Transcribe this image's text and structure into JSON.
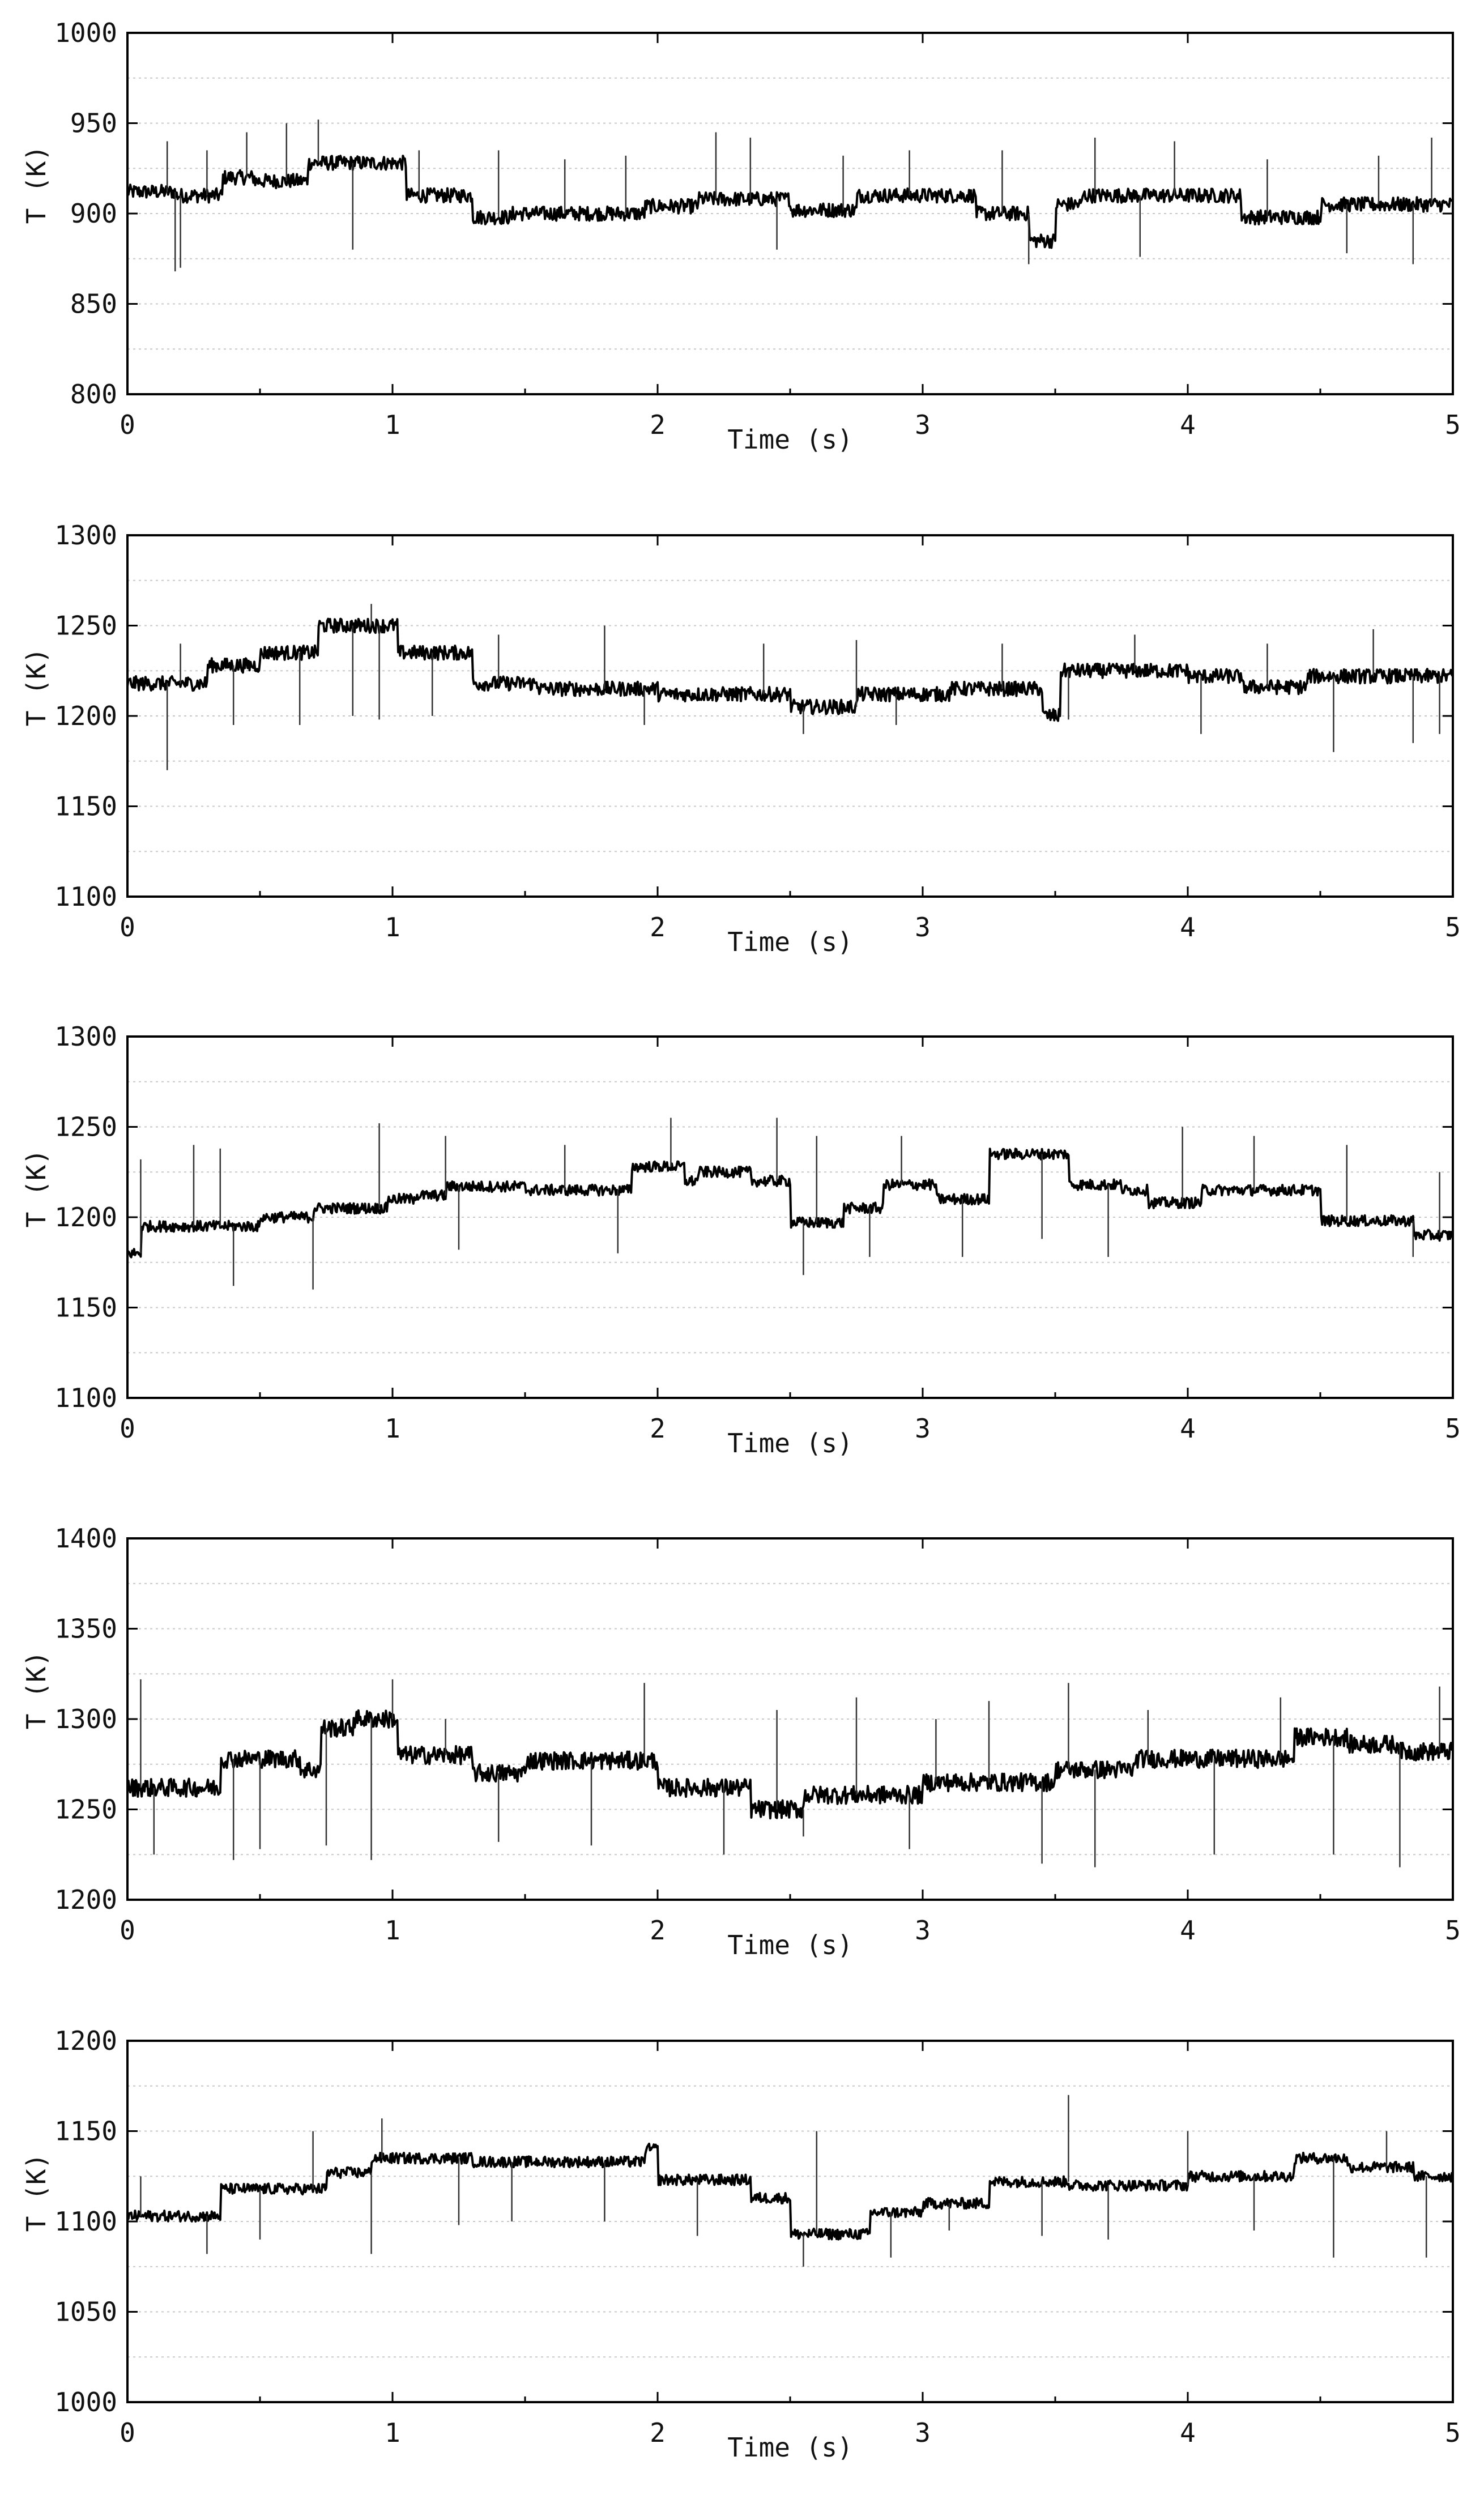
{
  "chart_data": [
    {
      "type": "line",
      "xlabel": "Time (s)",
      "ylabel": "T (K)",
      "xlim": [
        0,
        5
      ],
      "ylim": [
        800,
        1000
      ],
      "xticks": [
        "0",
        "1",
        "2",
        "3",
        "4",
        "5"
      ],
      "yticks": [
        "800",
        "850",
        "900",
        "950",
        "1000"
      ],
      "grid": "horizontal dotted",
      "series": [
        {
          "color": "#000000",
          "noise": 4,
          "segments": [
            [
              0,
              0.18,
              912
            ],
            [
              0.18,
              0.36,
              910
            ],
            [
              0.36,
              0.48,
              920
            ],
            [
              0.48,
              0.68,
              918
            ],
            [
              0.68,
              1.05,
              928
            ],
            [
              1.05,
              1.3,
              910
            ],
            [
              1.3,
              1.45,
              898
            ],
            [
              1.45,
              1.95,
              900
            ],
            [
              1.95,
              2.15,
              904
            ],
            [
              2.15,
              2.5,
              908
            ],
            [
              2.5,
              2.75,
              902
            ],
            [
              2.75,
              3.2,
              910
            ],
            [
              3.2,
              3.4,
              900
            ],
            [
              3.4,
              3.5,
              885
            ],
            [
              3.5,
              3.6,
              905
            ],
            [
              3.6,
              4.2,
              910
            ],
            [
              4.2,
              4.5,
              898
            ],
            [
              4.5,
              5,
              905
            ]
          ],
          "spikes": [
            [
              0.15,
              940
            ],
            [
              0.18,
              868
            ],
            [
              0.2,
              870
            ],
            [
              0.3,
              935
            ],
            [
              0.45,
              945
            ],
            [
              0.6,
              950
            ],
            [
              0.72,
              952
            ],
            [
              0.85,
              880
            ],
            [
              1.1,
              935
            ],
            [
              1.4,
              935
            ],
            [
              1.65,
              930
            ],
            [
              1.88,
              932
            ],
            [
              2.22,
              945
            ],
            [
              2.35,
              942
            ],
            [
              2.45,
              880
            ],
            [
              2.7,
              932
            ],
            [
              2.95,
              935
            ],
            [
              3.3,
              935
            ],
            [
              3.4,
              872
            ],
            [
              3.65,
              942
            ],
            [
              3.82,
              876
            ],
            [
              3.95,
              940
            ],
            [
              4.3,
              930
            ],
            [
              4.6,
              878
            ],
            [
              4.72,
              932
            ],
            [
              4.85,
              872
            ],
            [
              4.92,
              942
            ]
          ]
        }
      ]
    },
    {
      "type": "line",
      "xlabel": "Time (s)",
      "ylabel": "T (K)",
      "xlim": [
        0,
        5
      ],
      "ylim": [
        1100,
        1300
      ],
      "xticks": [
        "0",
        "1",
        "2",
        "3",
        "4",
        "5"
      ],
      "yticks": [
        "1100",
        "1150",
        "1200",
        "1250",
        "1300"
      ],
      "grid": "horizontal dotted",
      "series": [
        {
          "color": "#000000",
          "noise": 4,
          "segments": [
            [
              0,
              0.3,
              1218
            ],
            [
              0.3,
              0.5,
              1228
            ],
            [
              0.5,
              0.72,
              1235
            ],
            [
              0.72,
              1.02,
              1250
            ],
            [
              1.02,
              1.3,
              1235
            ],
            [
              1.3,
              1.55,
              1218
            ],
            [
              1.55,
              2.0,
              1215
            ],
            [
              2.0,
              2.5,
              1212
            ],
            [
              2.5,
              2.75,
              1205
            ],
            [
              2.75,
              3.1,
              1212
            ],
            [
              3.1,
              3.45,
              1215
            ],
            [
              3.45,
              3.52,
              1200
            ],
            [
              3.52,
              4.0,
              1225
            ],
            [
              4.0,
              4.2,
              1222
            ],
            [
              4.2,
              4.45,
              1216
            ],
            [
              4.45,
              5,
              1222
            ]
          ],
          "spikes": [
            [
              0.15,
              1170
            ],
            [
              0.2,
              1240
            ],
            [
              0.4,
              1195
            ],
            [
              0.65,
              1195
            ],
            [
              0.85,
              1200
            ],
            [
              0.92,
              1262
            ],
            [
              0.95,
              1198
            ],
            [
              1.15,
              1200
            ],
            [
              1.4,
              1245
            ],
            [
              1.8,
              1250
            ],
            [
              1.95,
              1195
            ],
            [
              2.4,
              1240
            ],
            [
              2.55,
              1190
            ],
            [
              2.75,
              1242
            ],
            [
              2.9,
              1195
            ],
            [
              3.3,
              1240
            ],
            [
              3.55,
              1198
            ],
            [
              3.8,
              1245
            ],
            [
              4.05,
              1190
            ],
            [
              4.3,
              1240
            ],
            [
              4.55,
              1180
            ],
            [
              4.7,
              1248
            ],
            [
              4.85,
              1185
            ],
            [
              4.95,
              1190
            ]
          ]
        }
      ]
    },
    {
      "type": "line",
      "xlabel": "Time (s)",
      "ylabel": "T (K)",
      "xlim": [
        0,
        5
      ],
      "ylim": [
        1100,
        1300
      ],
      "xticks": [
        "0",
        "1",
        "2",
        "3",
        "4",
        "5"
      ],
      "yticks": [
        "1100",
        "1150",
        "1200",
        "1250",
        "1300"
      ],
      "grid": "horizontal dotted",
      "series": [
        {
          "color": "#000000",
          "noise": 3,
          "segments": [
            [
              0,
              0.05,
              1180
            ],
            [
              0.05,
              0.5,
              1195
            ],
            [
              0.5,
              0.7,
              1200
            ],
            [
              0.7,
              0.98,
              1205
            ],
            [
              0.98,
              1.08,
              1210
            ],
            [
              1.08,
              1.2,
              1212
            ],
            [
              1.2,
              1.5,
              1217
            ],
            [
              1.5,
              1.9,
              1215
            ],
            [
              1.9,
              2.1,
              1228
            ],
            [
              2.1,
              2.15,
              1220
            ],
            [
              2.15,
              2.35,
              1225
            ],
            [
              2.35,
              2.5,
              1220
            ],
            [
              2.5,
              2.7,
              1197
            ],
            [
              2.7,
              2.85,
              1205
            ],
            [
              2.85,
              3.05,
              1218
            ],
            [
              3.05,
              3.25,
              1210
            ],
            [
              3.25,
              3.55,
              1235
            ],
            [
              3.55,
              3.75,
              1218
            ],
            [
              3.75,
              3.85,
              1215
            ],
            [
              3.85,
              4.05,
              1208
            ],
            [
              4.05,
              4.5,
              1215
            ],
            [
              4.5,
              4.85,
              1198
            ],
            [
              4.85,
              5,
              1190
            ]
          ],
          "spikes": [
            [
              0.05,
              1232
            ],
            [
              0.25,
              1240
            ],
            [
              0.35,
              1238
            ],
            [
              0.4,
              1162
            ],
            [
              0.7,
              1160
            ],
            [
              0.95,
              1252
            ],
            [
              1.2,
              1245
            ],
            [
              1.25,
              1182
            ],
            [
              1.65,
              1240
            ],
            [
              1.85,
              1180
            ],
            [
              2.05,
              1255
            ],
            [
              2.45,
              1255
            ],
            [
              2.55,
              1168
            ],
            [
              2.6,
              1245
            ],
            [
              2.8,
              1178
            ],
            [
              2.92,
              1245
            ],
            [
              3.15,
              1178
            ],
            [
              3.45,
              1188
            ],
            [
              3.7,
              1178
            ],
            [
              3.98,
              1250
            ],
            [
              4.25,
              1245
            ],
            [
              4.6,
              1240
            ],
            [
              4.85,
              1178
            ],
            [
              4.95,
              1225
            ]
          ]
        }
      ]
    },
    {
      "type": "line",
      "xlabel": "Time (s)",
      "ylabel": "T (K)",
      "xlim": [
        0,
        5
      ],
      "ylim": [
        1200,
        1400
      ],
      "xticks": [
        "0",
        "1",
        "2",
        "3",
        "4",
        "5"
      ],
      "yticks": [
        "1200",
        "1250",
        "1300",
        "1350",
        "1400"
      ],
      "grid": "horizontal dotted",
      "series": [
        {
          "color": "#000000",
          "noise": 5,
          "segments": [
            [
              0,
              0.35,
              1262
            ],
            [
              0.35,
              0.65,
              1278
            ],
            [
              0.65,
              0.73,
              1272
            ],
            [
              0.73,
              0.85,
              1295
            ],
            [
              0.85,
              1.02,
              1300
            ],
            [
              1.02,
              1.3,
              1280
            ],
            [
              1.3,
              1.5,
              1270
            ],
            [
              1.5,
              2.0,
              1277
            ],
            [
              2.0,
              2.35,
              1262
            ],
            [
              2.35,
              2.55,
              1250
            ],
            [
              2.55,
              3.0,
              1258
            ],
            [
              3.0,
              3.5,
              1265
            ],
            [
              3.5,
              3.8,
              1272
            ],
            [
              3.8,
              4.4,
              1278
            ],
            [
              4.4,
              4.6,
              1290
            ],
            [
              4.6,
              4.8,
              1286
            ],
            [
              4.8,
              5,
              1282
            ]
          ],
          "spikes": [
            [
              0.05,
              1322
            ],
            [
              0.1,
              1225
            ],
            [
              0.4,
              1222
            ],
            [
              0.5,
              1228
            ],
            [
              0.75,
              1230
            ],
            [
              0.92,
              1222
            ],
            [
              1.0,
              1322
            ],
            [
              1.2,
              1300
            ],
            [
              1.4,
              1232
            ],
            [
              1.75,
              1230
            ],
            [
              1.95,
              1320
            ],
            [
              2.25,
              1225
            ],
            [
              2.45,
              1305
            ],
            [
              2.55,
              1235
            ],
            [
              2.75,
              1312
            ],
            [
              2.95,
              1228
            ],
            [
              3.05,
              1300
            ],
            [
              3.25,
              1310
            ],
            [
              3.45,
              1220
            ],
            [
              3.55,
              1320
            ],
            [
              3.65,
              1218
            ],
            [
              3.85,
              1305
            ],
            [
              4.1,
              1225
            ],
            [
              4.35,
              1312
            ],
            [
              4.55,
              1225
            ],
            [
              4.8,
              1218
            ],
            [
              4.95,
              1318
            ]
          ]
        }
      ]
    },
    {
      "type": "line",
      "xlabel": "Time (s)",
      "ylabel": "T (K)",
      "xlim": [
        0,
        5
      ],
      "ylim": [
        1000,
        1200
      ],
      "xticks": [
        "0",
        "1",
        "2",
        "3",
        "4",
        "5"
      ],
      "yticks": [
        "1000",
        "1050",
        "1100",
        "1150",
        "1200"
      ],
      "grid": "horizontal dotted",
      "series": [
        {
          "color": "#000000",
          "noise": 3,
          "segments": [
            [
              0,
              0.35,
              1103
            ],
            [
              0.35,
              0.75,
              1118
            ],
            [
              0.75,
              0.92,
              1127
            ],
            [
              0.92,
              1.3,
              1135
            ],
            [
              1.3,
              1.95,
              1133
            ],
            [
              1.95,
              2.0,
              1140
            ],
            [
              2.0,
              2.35,
              1123
            ],
            [
              2.35,
              2.5,
              1113
            ],
            [
              2.5,
              2.8,
              1093
            ],
            [
              2.8,
              3.0,
              1105
            ],
            [
              3.0,
              3.25,
              1110
            ],
            [
              3.25,
              3.55,
              1122
            ],
            [
              3.55,
              3.8,
              1120
            ],
            [
              3.8,
              4.0,
              1120
            ],
            [
              4.0,
              4.4,
              1125
            ],
            [
              4.4,
              4.6,
              1135
            ],
            [
              4.6,
              4.85,
              1130
            ],
            [
              4.85,
              5,
              1125
            ]
          ],
          "spikes": [
            [
              0.05,
              1125
            ],
            [
              0.3,
              1082
            ],
            [
              0.5,
              1090
            ],
            [
              0.7,
              1150
            ],
            [
              0.92,
              1082
            ],
            [
              0.96,
              1157
            ],
            [
              1.25,
              1098
            ],
            [
              1.45,
              1100
            ],
            [
              1.8,
              1100
            ],
            [
              2.15,
              1092
            ],
            [
              2.55,
              1075
            ],
            [
              2.6,
              1150
            ],
            [
              2.88,
              1080
            ],
            [
              3.1,
              1095
            ],
            [
              3.45,
              1092
            ],
            [
              3.55,
              1170
            ],
            [
              3.7,
              1090
            ],
            [
              4.0,
              1150
            ],
            [
              4.25,
              1095
            ],
            [
              4.55,
              1080
            ],
            [
              4.75,
              1150
            ],
            [
              4.9,
              1080
            ]
          ]
        }
      ]
    }
  ]
}
